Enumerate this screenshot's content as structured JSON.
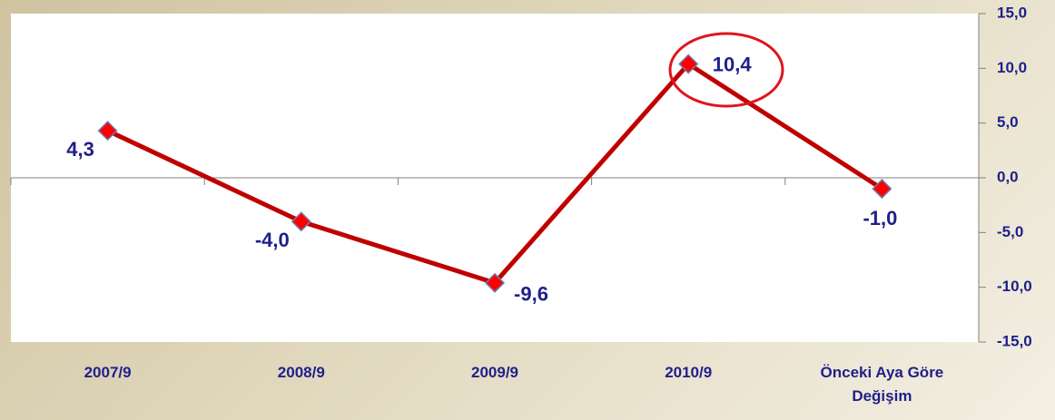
{
  "chart_data": {
    "type": "line",
    "categories": [
      "2007/9",
      "2008/9",
      "2009/9",
      "2010/9",
      "Önceki Aya Göre Değişim"
    ],
    "series": [
      {
        "name": null,
        "color": "#c00000",
        "marker_color": "#ff0000",
        "values": [
          4.3,
          -4.0,
          -9.6,
          10.4,
          -1.0
        ],
        "value_labels": [
          "4,3",
          "-4,0",
          "-9,6",
          "10,4",
          "-1,0"
        ]
      }
    ],
    "ylim": [
      -15,
      15
    ],
    "yticks": [
      {
        "value": -15,
        "label": "-15,0"
      },
      {
        "value": -10,
        "label": "-10,0"
      },
      {
        "value": -5,
        "label": "-5,0"
      },
      {
        "value": 0,
        "label": "0,0"
      },
      {
        "value": 5,
        "label": "5,0"
      },
      {
        "value": 10,
        "label": "10,0"
      },
      {
        "value": 15,
        "label": "15,0"
      }
    ],
    "y_axis_side": "right"
  }
}
